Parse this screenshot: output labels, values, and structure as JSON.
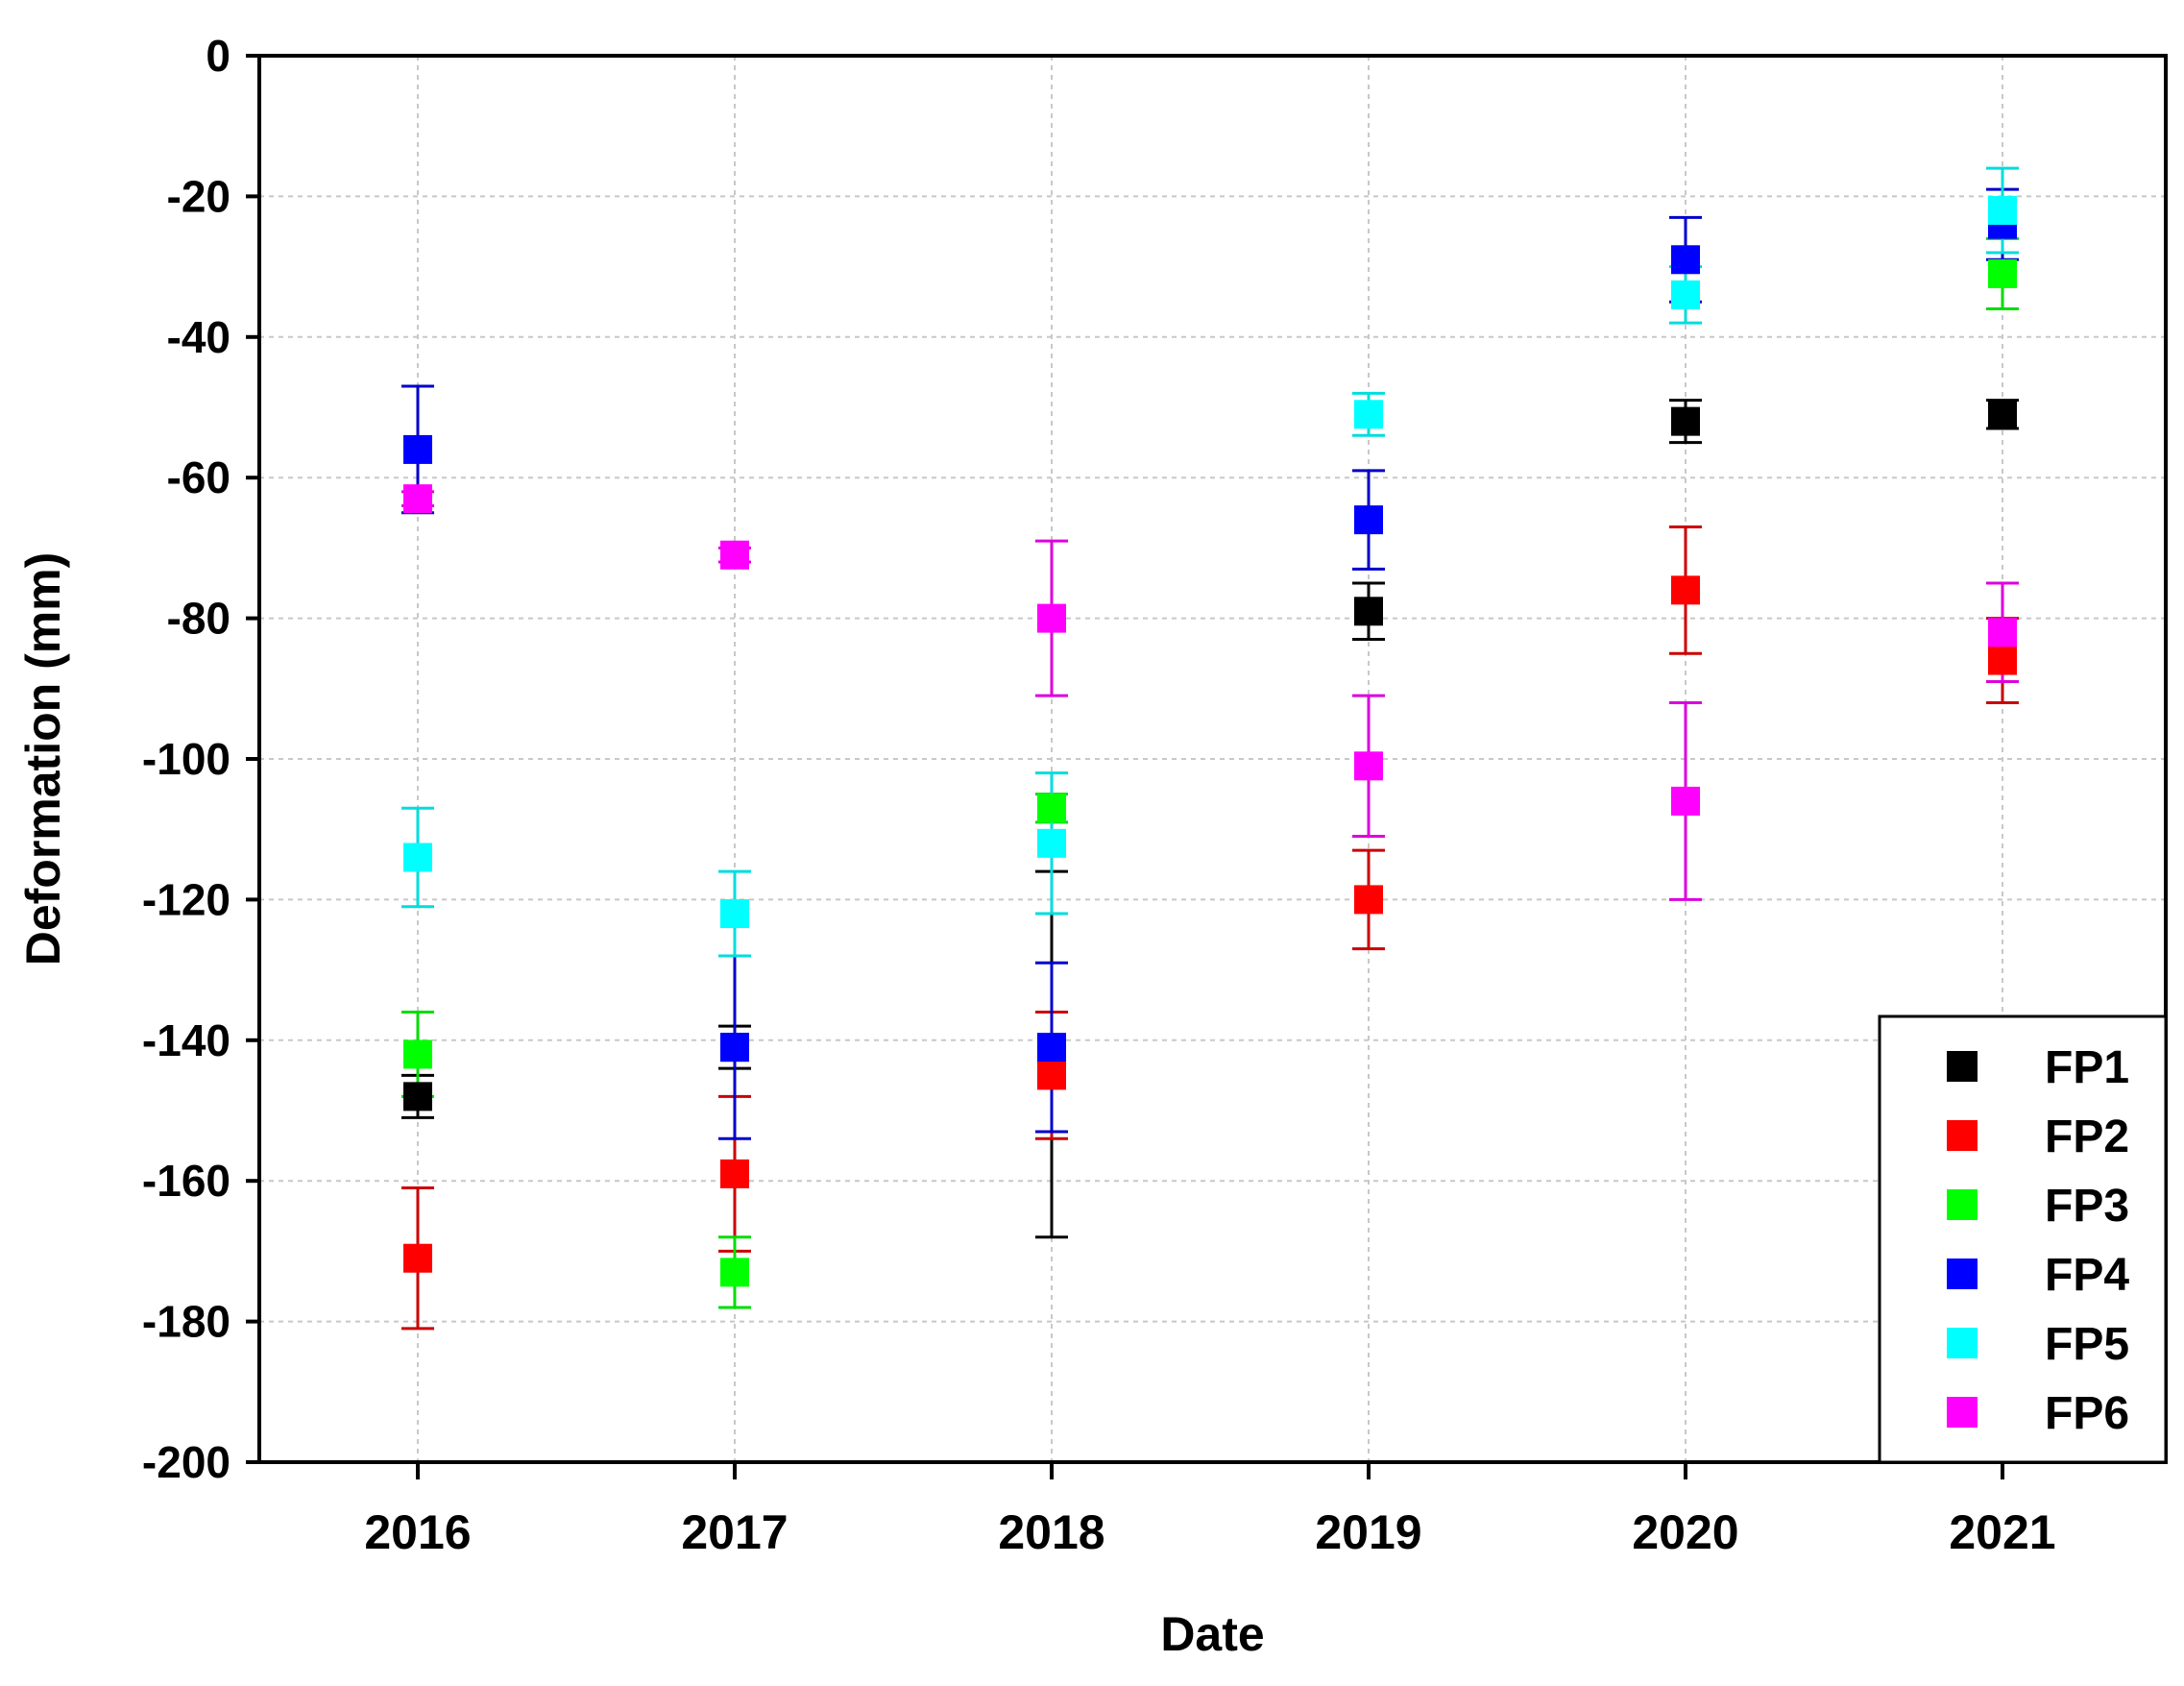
{
  "chart_data": {
    "type": "scatter",
    "title": "",
    "xlabel": "Date",
    "ylabel": "Deformation (mm)",
    "categories": [
      "2016",
      "2017",
      "2018",
      "2019",
      "2020",
      "2021"
    ],
    "ylim": [
      -200,
      0
    ],
    "yticks": [
      "0",
      "-20",
      "-40",
      "-60",
      "-80",
      "-100",
      "-120",
      "-140",
      "-160",
      "-180",
      "-200"
    ],
    "ytick_values": [
      0,
      -20,
      -40,
      -60,
      -80,
      -100,
      -120,
      -140,
      -160,
      -180,
      -200
    ],
    "grid": true,
    "legend_position": "bottom-right",
    "error_bars": true,
    "series": [
      {
        "name": "FP1",
        "color": "#000000",
        "errcolor": "#000000",
        "values": [
          -148,
          -141,
          -142,
          -79,
          -52,
          -51
        ],
        "err": [
          3,
          3,
          26,
          4,
          3,
          2
        ]
      },
      {
        "name": "FP2",
        "color": "#ff0000",
        "errcolor": "#cc0000",
        "values": [
          -171,
          -159,
          -145,
          -120,
          -76,
          -86
        ],
        "err": [
          10,
          11,
          9,
          7,
          9,
          6
        ]
      },
      {
        "name": "FP3",
        "color": "#00ff00",
        "errcolor": "#00dd00",
        "values": [
          -142,
          -173,
          -107,
          null,
          null,
          -31
        ],
        "err": [
          6,
          5,
          2,
          null,
          null,
          5
        ]
      },
      {
        "name": "FP4",
        "color": "#0000ff",
        "errcolor": "#0000cc",
        "values": [
          -56,
          -141,
          -141,
          -66,
          -29,
          -24
        ],
        "err": [
          9,
          13,
          12,
          7,
          6,
          5
        ]
      },
      {
        "name": "FP5",
        "color": "#00ffff",
        "errcolor": "#00dddd",
        "values": [
          -114,
          -122,
          -112,
          -51,
          -34,
          -22
        ],
        "err": [
          7,
          6,
          10,
          3,
          4,
          6
        ]
      },
      {
        "name": "FP6",
        "color": "#ff00ff",
        "errcolor": "#dd00dd",
        "values": [
          -63,
          -71,
          -80,
          -101,
          -106,
          -82
        ],
        "err": [
          1,
          1,
          11,
          10,
          14,
          7
        ]
      }
    ]
  }
}
